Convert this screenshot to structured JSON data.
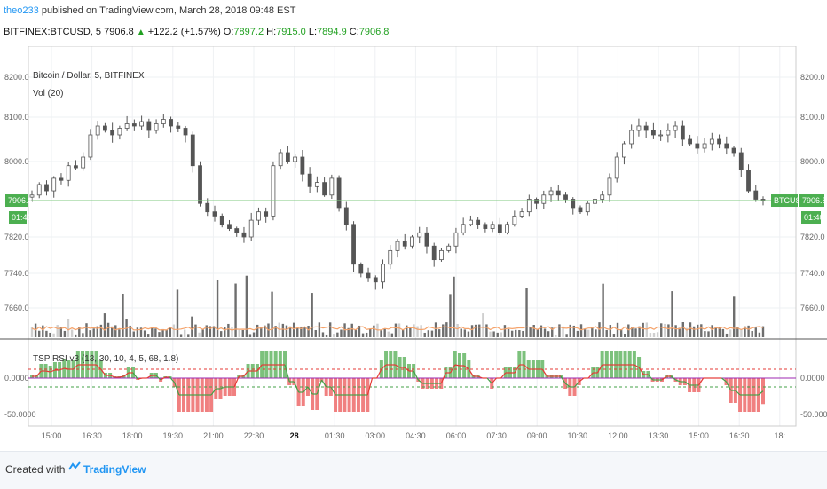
{
  "header": {
    "user": "theo233",
    "published": "published on TradingView.com, March 28, 2018 09:48 EST",
    "symbol": "BITFINEX:BTCUSD, 5",
    "last": "7906.8",
    "change": "+122.2 (+1.57%)",
    "o_label": "O:",
    "o_val": "7897.2",
    "h_label": "H:",
    "h_val": "7915.0",
    "l_label": "L:",
    "l_val": "7894.9",
    "c_label": "C:",
    "c_val": "7906.8"
  },
  "legend": {
    "title": "Bitcoin / Dollar, 5, BITFINEX",
    "vol": "Vol (20)",
    "rsi": "TSP RSI v3 (13, 30, 10, 4, 5, 68, 1.8)"
  },
  "footer": {
    "created_with": "Created with",
    "brand": "TradingView"
  },
  "colors": {
    "candle": "#555555",
    "vol_bar": "#6e6e6e",
    "vol_bar_light": "#cfcfcf",
    "vol_ma": "#f5a36b",
    "price_line": "#7fc97f",
    "badge": "#4caf50",
    "hist_pos": "#7cc17c",
    "hist_neg": "#f08080",
    "rsi_red": "#e53935",
    "rsi_green": "#43a047",
    "zero_line": "#9c27b0"
  },
  "chart_data": {
    "type": "candlestick",
    "price_axis": {
      "ticks": [
        "8200.0",
        "8100.0",
        "8000.0",
        "7820.0",
        "7740.0",
        "7660.0"
      ],
      "ylim": [
        7580,
        8240
      ]
    },
    "time_axis": {
      "ticks": [
        "15:00",
        "16:30",
        "18:00",
        "19:30",
        "21:00",
        "22:30",
        "28",
        "01:30",
        "03:00",
        "04:30",
        "06:00",
        "07:30",
        "09:00",
        "10:30",
        "12:00",
        "13:30",
        "15:00",
        "16:30",
        "18:"
      ]
    },
    "current_price": {
      "value": 7906.8,
      "label": "BTCUSD",
      "price_label": "7906.8",
      "countdown": "01:40"
    },
    "closes": [
      7920,
      7945,
      7930,
      7960,
      7955,
      7990,
      7985,
      8010,
      8060,
      8080,
      8070,
      8060,
      8075,
      8085,
      8080,
      8090,
      8070,
      8085,
      8095,
      8080,
      8075,
      8060,
      7990,
      7900,
      7880,
      7870,
      7850,
      7840,
      7830,
      7820,
      7860,
      7880,
      7870,
      7990,
      8020,
      8000,
      8010,
      7970,
      7940,
      7950,
      7920,
      7960,
      7890,
      7850,
      7760,
      7740,
      7730,
      7720,
      7760,
      7790,
      7810,
      7800,
      7820,
      7830,
      7800,
      7770,
      7790,
      7800,
      7830,
      7850,
      7860,
      7850,
      7840,
      7850,
      7830,
      7850,
      7870,
      7880,
      7910,
      7900,
      7920,
      7930,
      7920,
      7910,
      7890,
      7880,
      7900,
      7910,
      7920,
      7960,
      8010,
      8040,
      8070,
      8080,
      8070,
      8060,
      8060,
      8070,
      8080,
      8050,
      8040,
      8030,
      8040,
      8050,
      8040,
      8030,
      8020,
      7980,
      7930,
      7910,
      7906.8
    ],
    "volume": {
      "label": "Vol (20)",
      "axis_label": "7660.0"
    },
    "rsi": {
      "ticks": [
        "0.0000",
        "-50.0000"
      ],
      "upper_level": 12,
      "lower_level": -10
    }
  }
}
